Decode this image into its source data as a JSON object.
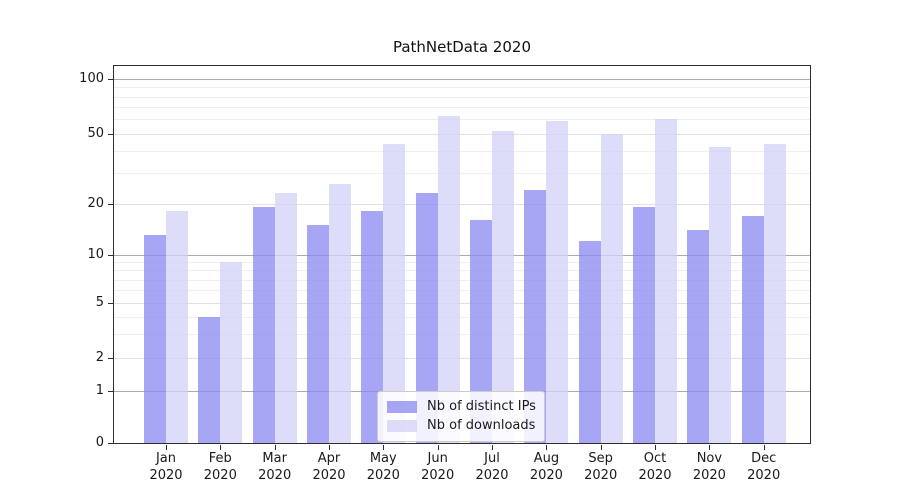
{
  "chart_data": {
    "type": "bar",
    "title": "PathNetData 2020",
    "categories": [
      "Jan\n2020",
      "Feb\n2020",
      "Mar\n2020",
      "Apr\n2020",
      "May\n2020",
      "Jun\n2020",
      "Jul\n2020",
      "Aug\n2020",
      "Sep\n2020",
      "Oct\n2020",
      "Nov\n2020",
      "Dec\n2020"
    ],
    "series": [
      {
        "key": "distinct-ips",
        "name": "Nb of distinct IPs",
        "color": "#8888f0",
        "values": [
          13,
          4,
          19,
          15,
          18,
          23,
          16,
          24,
          12,
          19,
          14,
          17
        ]
      },
      {
        "key": "downloads",
        "name": "Nb of downloads",
        "color": "#d2d2f8",
        "values": [
          18,
          9,
          23,
          26,
          44,
          63,
          52,
          59,
          50,
          60,
          42,
          44
        ]
      }
    ],
    "y_axis": {
      "ticks": [
        0,
        1,
        2,
        5,
        10,
        20,
        50,
        100
      ],
      "scale": "log-like with compressed region below 10 and 0 baseline"
    },
    "grid": "both major and minor horizontal gridlines",
    "legend_position": "lower center inside plot",
    "colors": {
      "bar_distinct_ips_visible": "#a6a6f4",
      "bar_downloads_visible": "#ddddfb",
      "gridline_decade": "#ababab",
      "gridline_major": "#e2e2e2",
      "gridline_minor": "#efefef",
      "axis_spine": "#2e2e2e",
      "text": "#1a1a1a"
    }
  }
}
